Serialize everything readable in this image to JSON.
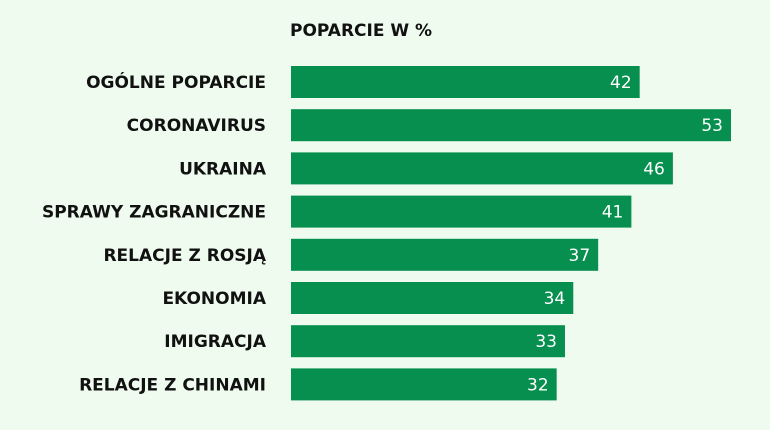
{
  "chart_data": {
    "type": "bar",
    "orientation": "horizontal",
    "title": "POPARCIE W %",
    "categories": [
      "OGÓLNE POPARCIE",
      "CORONAVIRUS",
      "UKRAINA",
      "SPRAWY ZAGRANICZNE",
      "RELACJE Z ROSJĄ",
      "EKONOMIA",
      "IMIGRACJA",
      "RELACJE Z CHINAMI"
    ],
    "values": [
      42,
      53,
      46,
      41,
      37,
      34,
      33,
      32
    ],
    "xlim": [
      0,
      53
    ],
    "grid": false,
    "legend": "none",
    "bar_color": "#068f4e",
    "background_color": "#eefbee",
    "value_label_color": "#ffffff"
  }
}
